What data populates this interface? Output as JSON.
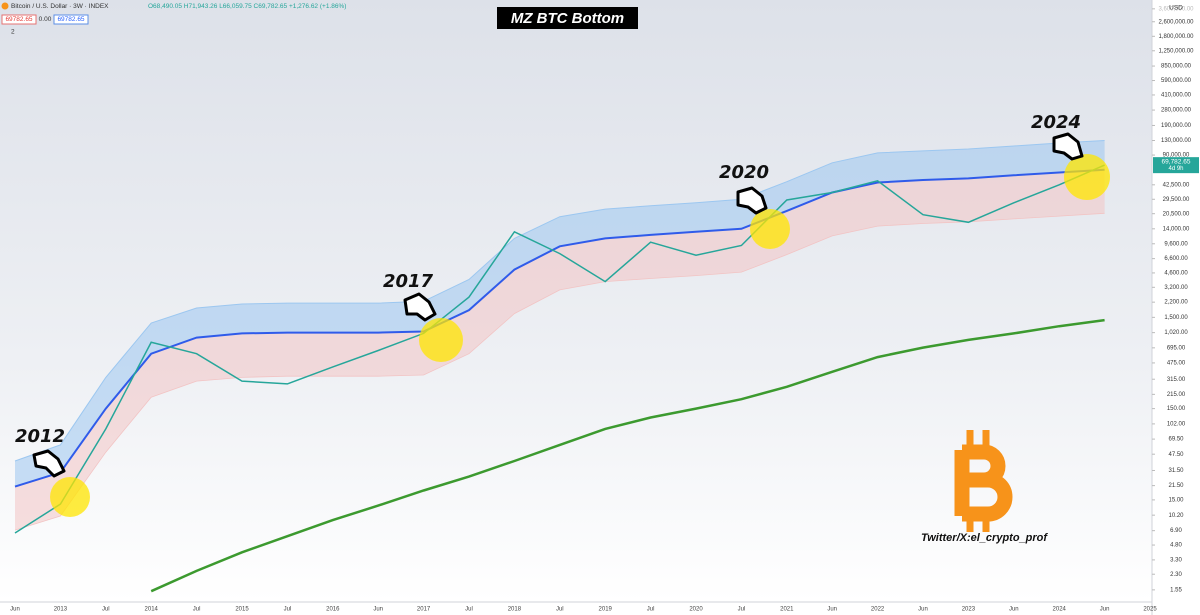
{
  "header": {
    "symbol": "Bitcoin / U.S. Dollar · 3W · INDEX",
    "ohlc": "O68,490.05 H71,943.26 L66,059.75 C69,782.65 +1,276.62 (+1.86%)",
    "bid": "69782.65",
    "spread": "0.00",
    "ask": "69782.65",
    "indicator_count": "2"
  },
  "chart_data": {
    "type": "line",
    "title": "MZ BTC Bottom",
    "currency": "USD",
    "price_label": "69,782.65",
    "countdown": "4d 9h",
    "annotations": [
      "2012",
      "2017",
      "2020",
      "2024"
    ],
    "credit": "Twitter/X:el_crypto_prof",
    "log_scale": true,
    "categories": [
      "Jun",
      "2013",
      "Jul",
      "2014",
      "Jul",
      "2015",
      "Jul",
      "2016",
      "Jun",
      "2017",
      "Jul",
      "2018",
      "Jul",
      "2019",
      "Jul",
      "2020",
      "Jul",
      "2021",
      "Jun",
      "2022",
      "Jun",
      "2023",
      "Jun",
      "2024",
      "Jun",
      "2025"
    ],
    "series": [
      {
        "color": "#9cc7f0",
        "values": [
          40,
          60,
          330,
          1300,
          1900,
          2100,
          2150,
          2150,
          2150,
          2250,
          3900,
          11000,
          19000,
          23000,
          25000,
          27000,
          29500,
          46000,
          74000,
          95000,
          100000,
          105000,
          113000,
          122000,
          130000,
          null
        ]
      },
      {
        "color": "#2f5bea",
        "values": [
          21,
          30,
          150,
          600,
          900,
          1000,
          1020,
          1020,
          1020,
          1050,
          1800,
          5000,
          9000,
          11000,
          12000,
          13000,
          14000,
          22000,
          35000,
          45000,
          48000,
          50000,
          54000,
          58000,
          62000,
          null
        ]
      },
      {
        "color": "#f2c4c4",
        "values": [
          7,
          10,
          50,
          200,
          300,
          330,
          340,
          340,
          340,
          350,
          600,
          1650,
          3000,
          3700,
          4000,
          4300,
          4700,
          7300,
          11700,
          15000,
          16000,
          16700,
          18000,
          19300,
          20700,
          null
        ]
      },
      {
        "color": "#26a69a",
        "values": [
          6.5,
          13.5,
          90,
          800,
          600,
          300,
          280,
          430,
          650,
          1000,
          2500,
          13000,
          7500,
          3700,
          10000,
          7200,
          9200,
          29000,
          35000,
          47000,
          20000,
          16500,
          27000,
          42500,
          69782.65,
          null
        ]
      },
      {
        "color": "#3c9a2f",
        "values": [
          null,
          null,
          null,
          1.5,
          2.5,
          4,
          6,
          9,
          13,
          19,
          27,
          40,
          60,
          90,
          120,
          150,
          190,
          260,
          380,
          550,
          700,
          850,
          1000,
          1200,
          1400,
          null
        ]
      }
    ],
    "ylim": [
      1.2,
      4500000
    ],
    "yticks": [
      {
        "value": 3600000,
        "label": "3,600,000.00"
      },
      {
        "value": 2600000,
        "label": "2,600,000.00"
      },
      {
        "value": 1800000,
        "label": "1,800,000.00"
      },
      {
        "value": 1250000,
        "label": "1,250,000.00"
      },
      {
        "value": 850000,
        "label": "850,000.00"
      },
      {
        "value": 590000,
        "label": "590,000.00"
      },
      {
        "value": 410000,
        "label": "410,000.00"
      },
      {
        "value": 280000,
        "label": "280,000.00"
      },
      {
        "value": 190000,
        "label": "190,000.00"
      },
      {
        "value": 130000,
        "label": "130,000.00"
      },
      {
        "value": 90000,
        "label": "90,000.00"
      },
      {
        "value": 42500,
        "label": "42,500.00"
      },
      {
        "value": 29500,
        "label": "29,500.00"
      },
      {
        "value": 20500,
        "label": "20,500.00"
      },
      {
        "value": 14000,
        "label": "14,000.00"
      },
      {
        "value": 9600,
        "label": "9,600.00"
      },
      {
        "value": 6600,
        "label": "6,600.00"
      },
      {
        "value": 4600,
        "label": "4,600.00"
      },
      {
        "value": 3200,
        "label": "3,200.00"
      },
      {
        "value": 2200,
        "label": "2,200.00"
      },
      {
        "value": 1500,
        "label": "1,500.00"
      },
      {
        "value": 1020,
        "label": "1,020.00"
      },
      {
        "value": 695,
        "label": "695.00"
      },
      {
        "value": 475,
        "label": "475.00"
      },
      {
        "value": 315,
        "label": "315.00"
      },
      {
        "value": 215,
        "label": "215.00"
      },
      {
        "value": 150,
        "label": "150.00"
      },
      {
        "value": 102,
        "label": "102.00"
      },
      {
        "value": 69.5,
        "label": "69.50"
      },
      {
        "value": 47.5,
        "label": "47.50"
      },
      {
        "value": 31.5,
        "label": "31.50"
      },
      {
        "value": 21.5,
        "label": "21.50"
      },
      {
        "value": 15,
        "label": "15.00"
      },
      {
        "value": 10.2,
        "label": "10.20"
      },
      {
        "value": 6.9,
        "label": "6.90"
      },
      {
        "value": 4.8,
        "label": "4.80"
      },
      {
        "value": 3.3,
        "label": "3.30"
      },
      {
        "value": 2.3,
        "label": "2.30"
      },
      {
        "value": 1.55,
        "label": "1.55"
      }
    ]
  }
}
